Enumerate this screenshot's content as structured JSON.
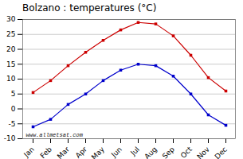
{
  "chart_data": {
    "type": "line",
    "title": "Bolzano : temperatures (°C)",
    "categories": [
      "Jan",
      "Feb",
      "Mar",
      "Apr",
      "May",
      "Jun",
      "Jul",
      "Aug",
      "Sep",
      "Oct",
      "Nov",
      "Dec"
    ],
    "series": [
      {
        "color": "#cc0000",
        "marker": "square",
        "values": [
          5.5,
          9.5,
          14.5,
          19.0,
          23.0,
          26.5,
          29.0,
          28.5,
          24.5,
          18.0,
          10.5,
          6.0
        ]
      },
      {
        "color": "#0000cc",
        "marker": "square",
        "values": [
          -6.0,
          -3.5,
          1.5,
          5.0,
          9.5,
          13.0,
          15.0,
          14.5,
          11.0,
          5.0,
          -2.0,
          -5.5
        ]
      }
    ],
    "ylim": [
      -10,
      30
    ],
    "yticks": [
      -10,
      -5,
      0,
      5,
      10,
      15,
      20,
      25,
      30
    ],
    "grid": true,
    "annotations": [
      "www.allmetsat.com"
    ]
  }
}
